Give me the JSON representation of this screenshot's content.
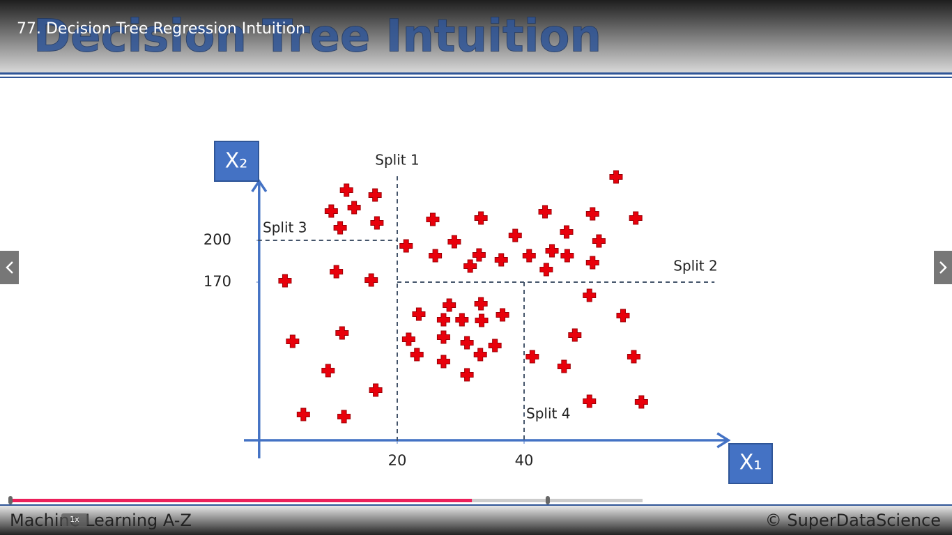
{
  "video_title": "77. Decision Tree Regression Intuition",
  "slide": {
    "title": "Decision Tree Intuition",
    "footer_left": "Machine Learning A-Z",
    "footer_right": "© SuperDataScience"
  },
  "player": {
    "speed": "1x",
    "progress": 73,
    "buffered": 85
  },
  "chart_data": {
    "type": "scatter",
    "x_label": "X₁",
    "y_label": "X₂",
    "color": "#e8000b",
    "x": [
      12.0,
      16.5,
      9.6,
      13.2,
      16.8,
      11.0,
      2.3,
      10.4,
      15.9,
      3.5,
      11.3,
      9.1,
      16.6,
      5.2,
      11.6,
      54.5,
      21.4,
      25.6,
      33.2,
      29.0,
      26.0,
      32.9,
      31.5,
      36.4,
      38.6,
      43.3,
      46.7,
      40.8,
      44.4,
      46.8,
      43.5,
      50.8,
      51.8,
      50.8,
      57.6,
      23.4,
      28.2,
      33.2,
      27.3,
      30.2,
      33.3,
      36.6,
      21.8,
      27.3,
      31.0,
      35.4,
      23.1,
      27.3,
      33.1,
      31.0,
      50.3,
      55.6,
      48.0,
      41.3,
      46.3,
      57.3,
      50.3,
      58.5
    ],
    "y": [
      236,
      232.5,
      221,
      223.5,
      212.5,
      209,
      171,
      177.5,
      171.5,
      127.5,
      133.5,
      106.5,
      92.5,
      75,
      73.5,
      245.5,
      196,
      215,
      216,
      199,
      189,
      189.5,
      181.5,
      186,
      203.5,
      220.5,
      206,
      189,
      192.5,
      189,
      179,
      219,
      199.5,
      184,
      216,
      147,
      153.5,
      154.5,
      143,
      143,
      142.5,
      146.5,
      129,
      130.5,
      126.5,
      124.5,
      118,
      113,
      118,
      103.5,
      160.5,
      146,
      132,
      116.5,
      109.5,
      116.5,
      84.5,
      84
    ],
    "xlim": [
      -2,
      72
    ],
    "ylim": [
      56,
      242
    ],
    "xticks": [
      20,
      40
    ],
    "yticks": [
      170,
      200
    ],
    "splits": [
      {
        "label": "Split 1",
        "axis": "x",
        "value": 20
      },
      {
        "label": "Split 2",
        "axis": "y",
        "value": 170
      },
      {
        "label": "Split 3",
        "axis": "y",
        "value": 200
      },
      {
        "label": "Split 4",
        "axis": "x",
        "value": 40
      }
    ]
  }
}
